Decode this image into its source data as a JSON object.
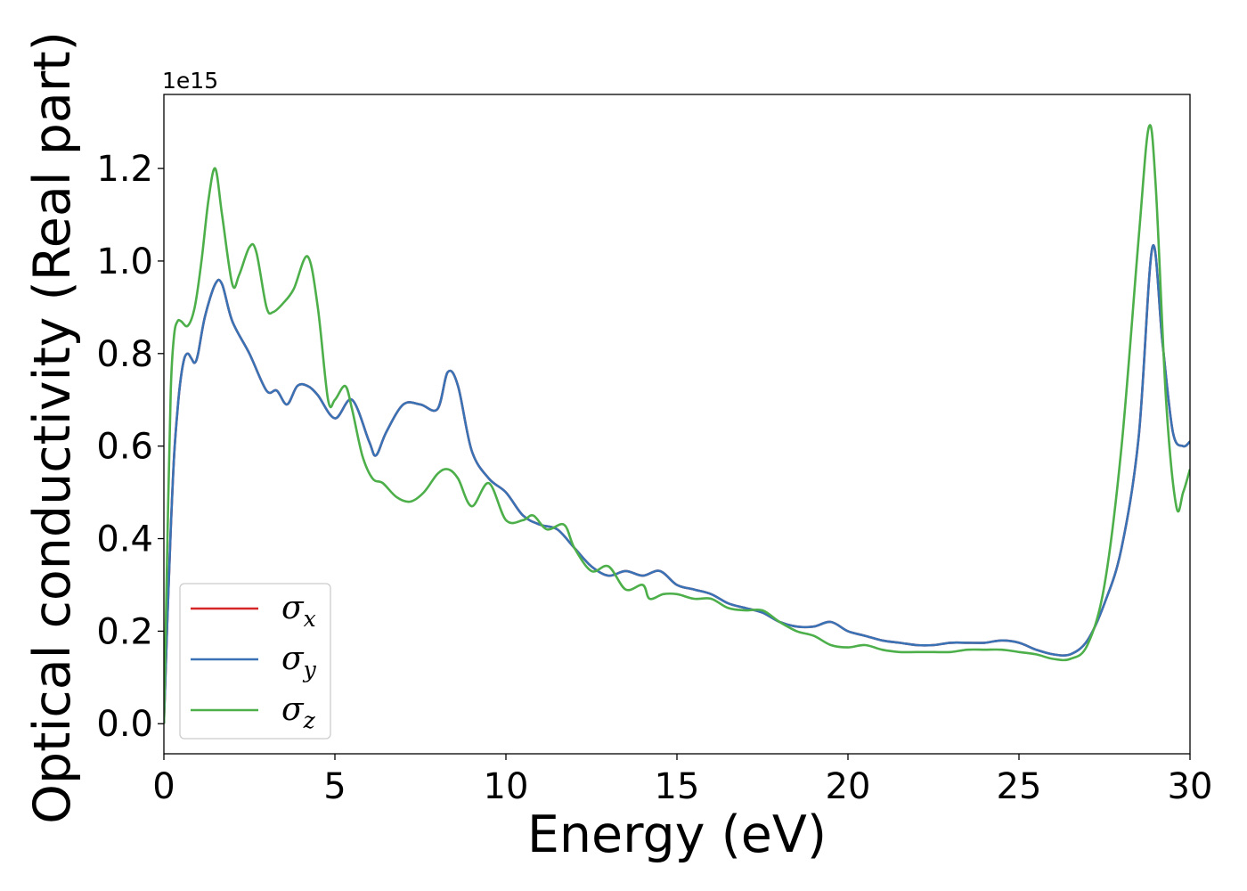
{
  "chart_data": {
    "type": "line",
    "title": "",
    "xlabel": "Energy (eV)",
    "ylabel": "Optical conductivity (Real part)",
    "y_offset_label": "1e15",
    "xlim": [
      0,
      30
    ],
    "ylim": [
      -0.065,
      1.36
    ],
    "x_ticks": [
      0,
      5,
      10,
      15,
      20,
      25,
      30
    ],
    "x_tick_labels": [
      "0",
      "5",
      "10",
      "15",
      "20",
      "25",
      "30"
    ],
    "y_ticks": [
      0.0,
      0.2,
      0.4,
      0.6,
      0.8,
      1.0,
      1.2
    ],
    "y_tick_labels": [
      "0.0",
      "0.2",
      "0.4",
      "0.6",
      "0.8",
      "1.0",
      "1.2"
    ],
    "grid": false,
    "legend_position": "bottom-left",
    "y_scale_factor": 1000000000000000.0,
    "series": [
      {
        "name": "σx",
        "base": "σ",
        "sub": "x",
        "color": "#d62728",
        "x": [
          0,
          0.1,
          0.2,
          0.3,
          0.4,
          0.5,
          0.6,
          0.7,
          0.8,
          0.9,
          1.0,
          1.2,
          1.5,
          1.7,
          2.0,
          2.5,
          3.0,
          3.3,
          3.6,
          3.9,
          4.2,
          4.5,
          5.0,
          5.5,
          6.0,
          6.2,
          6.5,
          7.0,
          7.5,
          8.0,
          8.3,
          8.6,
          9.0,
          9.5,
          10.0,
          10.5,
          11.0,
          11.5,
          12.0,
          12.5,
          13.0,
          13.5,
          14.0,
          14.5,
          15.0,
          15.5,
          16.0,
          16.5,
          17.0,
          17.5,
          18.0,
          18.5,
          19.0,
          19.5,
          20.0,
          20.5,
          21.0,
          21.5,
          22.0,
          22.5,
          23.0,
          23.5,
          24.0,
          24.5,
          25.0,
          25.5,
          26.0,
          26.5,
          27.0,
          27.5,
          28.0,
          28.5,
          28.9,
          29.2,
          29.5,
          29.8,
          30.0
        ],
        "values": [
          0.0,
          0.22,
          0.42,
          0.58,
          0.68,
          0.75,
          0.79,
          0.8,
          0.79,
          0.78,
          0.8,
          0.88,
          0.95,
          0.95,
          0.87,
          0.8,
          0.72,
          0.72,
          0.69,
          0.73,
          0.73,
          0.71,
          0.66,
          0.7,
          0.61,
          0.58,
          0.63,
          0.69,
          0.69,
          0.68,
          0.76,
          0.73,
          0.59,
          0.53,
          0.5,
          0.45,
          0.43,
          0.42,
          0.38,
          0.34,
          0.32,
          0.33,
          0.32,
          0.33,
          0.3,
          0.29,
          0.28,
          0.26,
          0.25,
          0.24,
          0.22,
          0.21,
          0.21,
          0.22,
          0.2,
          0.19,
          0.18,
          0.175,
          0.17,
          0.17,
          0.175,
          0.175,
          0.175,
          0.18,
          0.175,
          0.16,
          0.15,
          0.15,
          0.18,
          0.26,
          0.38,
          0.62,
          1.03,
          0.82,
          0.63,
          0.6,
          0.61
        ]
      },
      {
        "name": "σy",
        "base": "σ",
        "sub": "y",
        "color": "#3a73b5",
        "x": [
          0,
          0.1,
          0.2,
          0.3,
          0.4,
          0.5,
          0.6,
          0.7,
          0.8,
          0.9,
          1.0,
          1.2,
          1.5,
          1.7,
          2.0,
          2.5,
          3.0,
          3.3,
          3.6,
          3.9,
          4.2,
          4.5,
          5.0,
          5.5,
          6.0,
          6.2,
          6.5,
          7.0,
          7.5,
          8.0,
          8.3,
          8.6,
          9.0,
          9.5,
          10.0,
          10.5,
          11.0,
          11.5,
          12.0,
          12.5,
          13.0,
          13.5,
          14.0,
          14.5,
          15.0,
          15.5,
          16.0,
          16.5,
          17.0,
          17.5,
          18.0,
          18.5,
          19.0,
          19.5,
          20.0,
          20.5,
          21.0,
          21.5,
          22.0,
          22.5,
          23.0,
          23.5,
          24.0,
          24.5,
          25.0,
          25.5,
          26.0,
          26.5,
          27.0,
          27.5,
          28.0,
          28.5,
          28.9,
          29.2,
          29.5,
          29.8,
          30.0
        ],
        "values": [
          0.0,
          0.22,
          0.42,
          0.58,
          0.68,
          0.75,
          0.79,
          0.8,
          0.79,
          0.78,
          0.8,
          0.88,
          0.95,
          0.95,
          0.87,
          0.8,
          0.72,
          0.72,
          0.69,
          0.73,
          0.73,
          0.71,
          0.66,
          0.7,
          0.61,
          0.58,
          0.63,
          0.69,
          0.69,
          0.68,
          0.76,
          0.73,
          0.59,
          0.53,
          0.5,
          0.45,
          0.43,
          0.42,
          0.38,
          0.34,
          0.32,
          0.33,
          0.32,
          0.33,
          0.3,
          0.29,
          0.28,
          0.26,
          0.25,
          0.24,
          0.22,
          0.21,
          0.21,
          0.22,
          0.2,
          0.19,
          0.18,
          0.175,
          0.17,
          0.17,
          0.175,
          0.175,
          0.175,
          0.18,
          0.175,
          0.16,
          0.15,
          0.15,
          0.18,
          0.26,
          0.38,
          0.62,
          1.03,
          0.82,
          0.63,
          0.6,
          0.61
        ]
      },
      {
        "name": "σz",
        "base": "σ",
        "sub": "z",
        "color": "#4daf4a",
        "x": [
          0,
          0.1,
          0.2,
          0.3,
          0.4,
          0.5,
          0.7,
          0.9,
          1.1,
          1.3,
          1.5,
          1.7,
          2.0,
          2.2,
          2.5,
          2.7,
          3.0,
          3.2,
          3.5,
          3.8,
          4.2,
          4.5,
          4.8,
          5.0,
          5.3,
          5.5,
          5.8,
          6.1,
          6.4,
          6.8,
          7.2,
          7.6,
          8.0,
          8.3,
          8.6,
          9.0,
          9.5,
          10.0,
          10.5,
          10.8,
          11.2,
          11.7,
          12.0,
          12.5,
          13.0,
          13.5,
          14.0,
          14.2,
          14.6,
          15.0,
          15.5,
          16.0,
          16.5,
          17.0,
          17.5,
          18.0,
          18.5,
          19.0,
          19.5,
          20.0,
          20.5,
          21.0,
          21.5,
          22.0,
          22.5,
          23.0,
          23.5,
          24.0,
          24.5,
          25.0,
          25.5,
          26.0,
          26.5,
          27.0,
          27.5,
          28.0,
          28.5,
          28.8,
          29.0,
          29.3,
          29.6,
          29.8,
          30.0
        ],
        "values": [
          0.0,
          0.38,
          0.72,
          0.84,
          0.87,
          0.87,
          0.86,
          0.9,
          1.0,
          1.13,
          1.2,
          1.1,
          0.95,
          0.97,
          1.03,
          1.02,
          0.9,
          0.89,
          0.91,
          0.94,
          1.01,
          0.9,
          0.7,
          0.7,
          0.73,
          0.68,
          0.58,
          0.53,
          0.52,
          0.49,
          0.48,
          0.5,
          0.54,
          0.55,
          0.53,
          0.47,
          0.52,
          0.44,
          0.44,
          0.45,
          0.42,
          0.43,
          0.38,
          0.33,
          0.34,
          0.29,
          0.3,
          0.27,
          0.28,
          0.28,
          0.27,
          0.27,
          0.25,
          0.245,
          0.245,
          0.22,
          0.2,
          0.19,
          0.17,
          0.165,
          0.17,
          0.16,
          0.155,
          0.155,
          0.155,
          0.155,
          0.16,
          0.16,
          0.16,
          0.155,
          0.15,
          0.14,
          0.14,
          0.17,
          0.3,
          0.6,
          1.05,
          1.29,
          1.16,
          0.7,
          0.47,
          0.5,
          0.55
        ]
      }
    ]
  }
}
